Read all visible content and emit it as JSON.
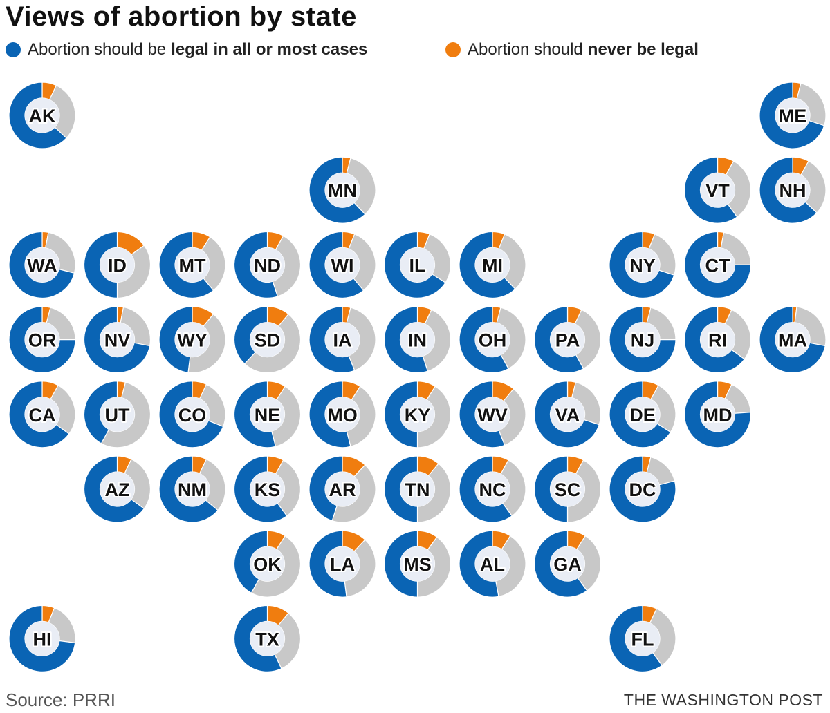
{
  "chart_data": {
    "type": "donut-tile-map",
    "title": "Views of abortion by state",
    "legend": [
      {
        "prefix": "Abortion should be",
        "emphasis": "legal in all or most cases",
        "color": "#0a64b4"
      },
      {
        "prefix": "Abortion should",
        "emphasis": "never be legal",
        "color": "#f07d0f"
      }
    ],
    "remainder_color": "#c8c8c8",
    "source": "Source: PRRI",
    "credit": "THE WASHINGTON POST",
    "states": [
      {
        "abbr": "AK",
        "col": 0,
        "row": 0,
        "legal": 63,
        "never": 7
      },
      {
        "abbr": "ME",
        "col": 10,
        "row": 0,
        "legal": 70,
        "never": 4
      },
      {
        "abbr": "MN",
        "col": 4,
        "row": 1,
        "legal": 62,
        "never": 4
      },
      {
        "abbr": "VT",
        "col": 9,
        "row": 1,
        "legal": 60,
        "never": 8
      },
      {
        "abbr": "NH",
        "col": 10,
        "row": 1,
        "legal": 63,
        "never": 8
      },
      {
        "abbr": "WA",
        "col": 0,
        "row": 2,
        "legal": 71,
        "never": 3
      },
      {
        "abbr": "ID",
        "col": 1,
        "row": 2,
        "legal": 50,
        "never": 15
      },
      {
        "abbr": "MT",
        "col": 2,
        "row": 2,
        "legal": 61,
        "never": 9
      },
      {
        "abbr": "ND",
        "col": 3,
        "row": 2,
        "legal": 55,
        "never": 8
      },
      {
        "abbr": "WI",
        "col": 4,
        "row": 2,
        "legal": 61,
        "never": 6
      },
      {
        "abbr": "IL",
        "col": 5,
        "row": 2,
        "legal": 66,
        "never": 6
      },
      {
        "abbr": "MI",
        "col": 6,
        "row": 2,
        "legal": 62,
        "never": 6
      },
      {
        "abbr": "NY",
        "col": 8,
        "row": 2,
        "legal": 70,
        "never": 6
      },
      {
        "abbr": "CT",
        "col": 9,
        "row": 2,
        "legal": 75,
        "never": 3
      },
      {
        "abbr": "OR",
        "col": 0,
        "row": 3,
        "legal": 75,
        "never": 4
      },
      {
        "abbr": "NV",
        "col": 1,
        "row": 3,
        "legal": 72,
        "never": 3
      },
      {
        "abbr": "WY",
        "col": 2,
        "row": 3,
        "legal": 48,
        "never": 11
      },
      {
        "abbr": "SD",
        "col": 3,
        "row": 3,
        "legal": 38,
        "never": 11
      },
      {
        "abbr": "IA",
        "col": 4,
        "row": 3,
        "legal": 56,
        "never": 4
      },
      {
        "abbr": "IN",
        "col": 5,
        "row": 3,
        "legal": 55,
        "never": 7
      },
      {
        "abbr": "OH",
        "col": 6,
        "row": 3,
        "legal": 58,
        "never": 4
      },
      {
        "abbr": "PA",
        "col": 7,
        "row": 3,
        "legal": 58,
        "never": 7
      },
      {
        "abbr": "NJ",
        "col": 8,
        "row": 3,
        "legal": 75,
        "never": 4
      },
      {
        "abbr": "RI",
        "col": 9,
        "row": 3,
        "legal": 65,
        "never": 7
      },
      {
        "abbr": "MA",
        "col": 10,
        "row": 3,
        "legal": 72,
        "never": 2
      },
      {
        "abbr": "CA",
        "col": 0,
        "row": 4,
        "legal": 65,
        "never": 8
      },
      {
        "abbr": "UT",
        "col": 1,
        "row": 4,
        "legal": 42,
        "never": 4
      },
      {
        "abbr": "CO",
        "col": 2,
        "row": 4,
        "legal": 69,
        "never": 7
      },
      {
        "abbr": "NE",
        "col": 3,
        "row": 4,
        "legal": 54,
        "never": 9
      },
      {
        "abbr": "MO",
        "col": 4,
        "row": 4,
        "legal": 54,
        "never": 9
      },
      {
        "abbr": "KY",
        "col": 5,
        "row": 4,
        "legal": 50,
        "never": 9
      },
      {
        "abbr": "WV",
        "col": 6,
        "row": 4,
        "legal": 56,
        "never": 11
      },
      {
        "abbr": "VA",
        "col": 7,
        "row": 4,
        "legal": 70,
        "never": 4
      },
      {
        "abbr": "DE",
        "col": 8,
        "row": 4,
        "legal": 66,
        "never": 8
      },
      {
        "abbr": "MD",
        "col": 9,
        "row": 4,
        "legal": 76,
        "never": 7
      },
      {
        "abbr": "AZ",
        "col": 1,
        "row": 5,
        "legal": 65,
        "never": 7
      },
      {
        "abbr": "NM",
        "col": 2,
        "row": 5,
        "legal": 64,
        "never": 7
      },
      {
        "abbr": "KS",
        "col": 3,
        "row": 5,
        "legal": 60,
        "never": 8
      },
      {
        "abbr": "AR",
        "col": 4,
        "row": 5,
        "legal": 45,
        "never": 12
      },
      {
        "abbr": "TN",
        "col": 5,
        "row": 5,
        "legal": 50,
        "never": 11
      },
      {
        "abbr": "NC",
        "col": 6,
        "row": 5,
        "legal": 60,
        "never": 8
      },
      {
        "abbr": "SC",
        "col": 7,
        "row": 5,
        "legal": 50,
        "never": 8
      },
      {
        "abbr": "DC",
        "col": 8,
        "row": 5,
        "legal": 79,
        "never": 4
      },
      {
        "abbr": "OK",
        "col": 3,
        "row": 6,
        "legal": 42,
        "never": 9
      },
      {
        "abbr": "LA",
        "col": 4,
        "row": 6,
        "legal": 52,
        "never": 12
      },
      {
        "abbr": "MS",
        "col": 5,
        "row": 6,
        "legal": 50,
        "never": 10
      },
      {
        "abbr": "AL",
        "col": 6,
        "row": 6,
        "legal": 53,
        "never": 9
      },
      {
        "abbr": "GA",
        "col": 7,
        "row": 6,
        "legal": 60,
        "never": 9
      },
      {
        "abbr": "HI",
        "col": 0,
        "row": 7,
        "legal": 73,
        "never": 6
      },
      {
        "abbr": "TX",
        "col": 3,
        "row": 7,
        "legal": 57,
        "never": 11
      },
      {
        "abbr": "FL",
        "col": 8,
        "row": 7,
        "legal": 60,
        "never": 7
      }
    ]
  }
}
